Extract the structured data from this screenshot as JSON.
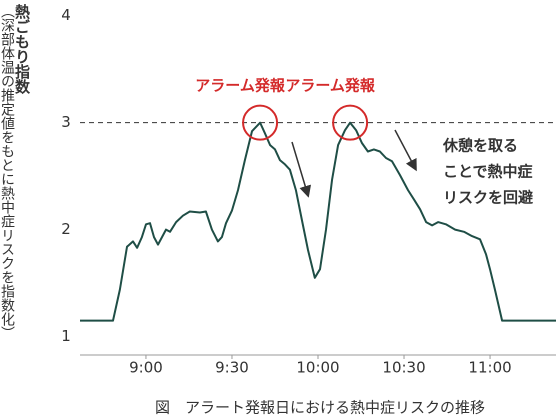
{
  "chart_data": {
    "type": "line",
    "caption": "図　アラート発報日における熱中症リスクの推移",
    "ylabel": "熱ごもり指数",
    "ylabel_note": "（深部体温の推定値をもとに熱中症リスクを指数化）",
    "threshold": 3,
    "alarm_label": "アラーム発報",
    "note": [
      "休憩を取る",
      "ことで熱中症",
      "リスクを回避"
    ],
    "xlim": [
      517,
      683
    ],
    "xticks": [
      {
        "value": 540,
        "label": "9:00"
      },
      {
        "value": 570,
        "label": "9:30"
      },
      {
        "value": 600,
        "label": "10:00"
      },
      {
        "value": 630,
        "label": "10:30"
      },
      {
        "value": 660,
        "label": "11:00"
      }
    ],
    "ylim": [
      0.8,
      4.1
    ],
    "yticks": [
      1,
      2,
      3,
      4
    ],
    "color": "#1f4e46",
    "alarm_color": "#d42a2a",
    "x": [
      517.0,
      528.5,
      530.9,
      533.4,
      535.5,
      536.9,
      538.6,
      540.0,
      541.4,
      542.8,
      544.2,
      545.6,
      547.0,
      548.4,
      550.5,
      552.9,
      555.3,
      558.8,
      560.9,
      563.0,
      565.1,
      566.5,
      567.9,
      570.0,
      572.1,
      574.5,
      577.0,
      579.8,
      581.5,
      583.3,
      585.0,
      586.7,
      588.5,
      590.2,
      592.3,
      594.4,
      596.5,
      598.9,
      600.7,
      602.8,
      604.9,
      607.0,
      609.4,
      611.2,
      613.3,
      615.3,
      617.4,
      619.5,
      621.6,
      623.7,
      625.8,
      628.6,
      631.4,
      633.5,
      635.6,
      637.7,
      639.8,
      641.9,
      644.6,
      647.8,
      650.9,
      653.7,
      656.5,
      658.6,
      660.0,
      661.7,
      664.2,
      683.0
    ],
    "values": [
      1.15,
      1.15,
      1.44,
      1.84,
      1.89,
      1.83,
      1.93,
      2.05,
      2.06,
      1.93,
      1.86,
      1.93,
      2.0,
      1.98,
      2.07,
      2.13,
      2.17,
      2.16,
      2.17,
      2.0,
      1.89,
      1.93,
      2.06,
      2.18,
      2.37,
      2.65,
      2.92,
      3.0,
      2.9,
      2.79,
      2.75,
      2.65,
      2.61,
      2.56,
      2.37,
      2.09,
      1.81,
      1.55,
      1.63,
      2.0,
      2.47,
      2.79,
      2.93,
      3.0,
      2.93,
      2.81,
      2.73,
      2.75,
      2.73,
      2.67,
      2.64,
      2.51,
      2.37,
      2.28,
      2.19,
      2.07,
      2.04,
      2.07,
      2.05,
      2.0,
      1.98,
      1.94,
      1.91,
      1.77,
      1.63,
      1.44,
      1.15,
      1.15
    ]
  }
}
